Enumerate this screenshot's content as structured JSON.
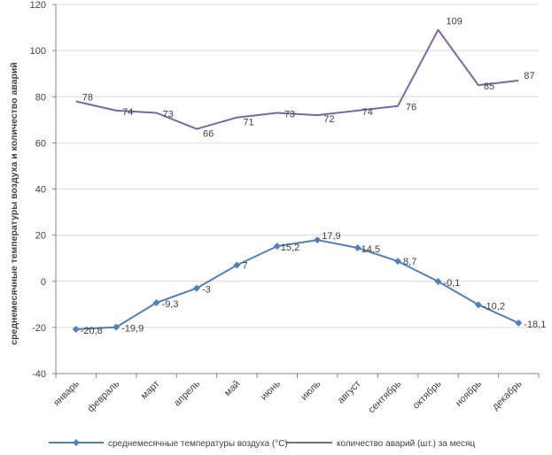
{
  "chart_data": {
    "type": "line",
    "title": "",
    "xlabel": "",
    "ylabel": "среднемесячные температуры воздуха и  количество аварий",
    "ylim": [
      -40,
      120
    ],
    "yticks": [
      -40,
      -20,
      0,
      20,
      40,
      60,
      80,
      100,
      120
    ],
    "categories": [
      "январь",
      "февраль",
      "март",
      "апрель",
      "май",
      "июнь",
      "июль",
      "август",
      "сентябрь",
      "октябрь",
      "ноябрь",
      "декабрь"
    ],
    "series": [
      {
        "name": "среднемесячные температуры воздуха (°С)",
        "color": "#4f81bd",
        "marker": "diamond",
        "values": [
          -20.8,
          -19.9,
          -9.3,
          -3,
          7,
          15.2,
          17.9,
          14.5,
          8.7,
          -0.1,
          -10.2,
          -18.1
        ],
        "labels": [
          "-20,8",
          "-19,9",
          "-9,3",
          "-3",
          "7",
          "15,2",
          "17,9",
          "14,5",
          "8,7",
          "-0,1",
          "-10,2",
          "-18,1"
        ]
      },
      {
        "name": "количество аварий (шт.) за месяц",
        "color": "#8064a2",
        "marker": "none",
        "values": [
          78,
          74,
          73,
          66,
          71,
          73,
          72,
          74,
          76,
          109,
          85,
          87
        ],
        "labels": [
          "78",
          "74",
          "73",
          "66",
          "71",
          "73",
          "72",
          "74",
          "76",
          "109",
          "85",
          "87"
        ]
      }
    ],
    "legend": "bottom",
    "grid": "horizontal"
  }
}
